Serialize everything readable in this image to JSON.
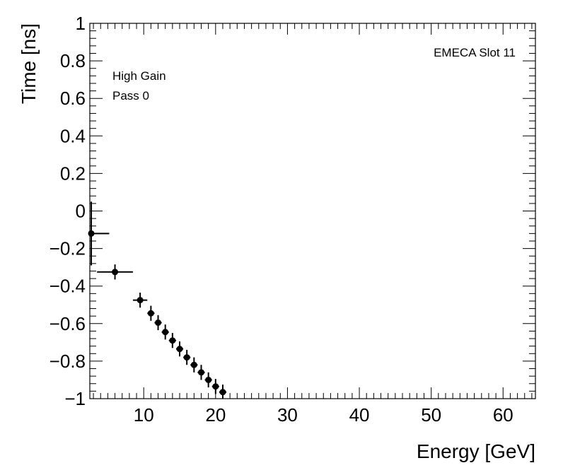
{
  "chart_data": {
    "type": "scatter",
    "title": "",
    "xlabel": "Energy [GeV]",
    "ylabel": "Time [ns]",
    "xlim": [
      2.5,
      64.5
    ],
    "ylim": [
      -1,
      1
    ],
    "x_ticks": [
      10,
      20,
      30,
      40,
      50,
      60
    ],
    "y_ticks": [
      -1,
      -0.8,
      -0.6,
      -0.4,
      -0.2,
      0,
      0.2,
      0.4,
      0.6,
      0.8,
      1
    ],
    "y_tick_labels": [
      "−1",
      "−0.8",
      "−0.6",
      "−0.4",
      "−0.2",
      "0",
      "0.2",
      "0.4",
      "0.6",
      "0.8",
      "1"
    ],
    "grid": false,
    "annotations": {
      "label_top_right": "EMECA Slot 11",
      "label_line1": "High Gain",
      "label_line2": "Pass 0"
    },
    "series": [
      {
        "marker": "circle",
        "color": "#000000",
        "points": [
          {
            "x": 2.7,
            "y": -0.12,
            "xerr_lo": 0.2,
            "xerr_hi": 2.5,
            "yerr": 0.17
          },
          {
            "x": 6.0,
            "y": -0.325,
            "xerr_lo": 2.5,
            "xerr_hi": 2.5,
            "yerr": 0.04
          },
          {
            "x": 9.5,
            "y": -0.475,
            "xerr_lo": 1.0,
            "xerr_hi": 1.0,
            "yerr": 0.04
          },
          {
            "x": 11.0,
            "y": -0.545,
            "xerr_lo": 0.5,
            "xerr_hi": 0.5,
            "yerr": 0.04
          },
          {
            "x": 12.0,
            "y": -0.595,
            "xerr_lo": 0.5,
            "xerr_hi": 0.5,
            "yerr": 0.04
          },
          {
            "x": 13.0,
            "y": -0.645,
            "xerr_lo": 0.5,
            "xerr_hi": 0.5,
            "yerr": 0.04
          },
          {
            "x": 14.0,
            "y": -0.69,
            "xerr_lo": 0.5,
            "xerr_hi": 0.5,
            "yerr": 0.04
          },
          {
            "x": 15.0,
            "y": -0.735,
            "xerr_lo": 0.5,
            "xerr_hi": 0.5,
            "yerr": 0.04
          },
          {
            "x": 16.0,
            "y": -0.78,
            "xerr_lo": 0.5,
            "xerr_hi": 0.5,
            "yerr": 0.04
          },
          {
            "x": 17.0,
            "y": -0.82,
            "xerr_lo": 0.5,
            "xerr_hi": 0.5,
            "yerr": 0.04
          },
          {
            "x": 18.0,
            "y": -0.86,
            "xerr_lo": 0.5,
            "xerr_hi": 0.5,
            "yerr": 0.04
          },
          {
            "x": 19.0,
            "y": -0.9,
            "xerr_lo": 0.5,
            "xerr_hi": 0.5,
            "yerr": 0.04
          },
          {
            "x": 20.0,
            "y": -0.935,
            "xerr_lo": 0.5,
            "xerr_hi": 0.5,
            "yerr": 0.04
          },
          {
            "x": 21.0,
            "y": -0.965,
            "xerr_lo": 0.5,
            "xerr_hi": 0.5,
            "yerr": 0.04
          }
        ]
      }
    ]
  }
}
